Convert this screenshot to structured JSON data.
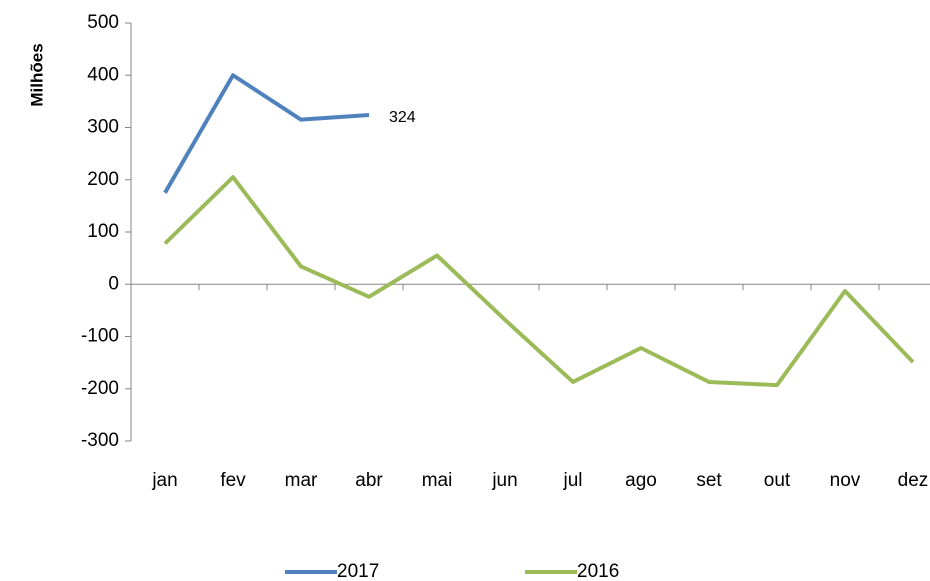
{
  "chart_data": {
    "type": "line",
    "y_label": "Milhões",
    "categories": [
      "jan",
      "fev",
      "mar",
      "abr",
      "mai",
      "jun",
      "jul",
      "ago",
      "set",
      "out",
      "nov",
      "dez"
    ],
    "series": [
      {
        "name": "2017",
        "color": "#4f81bd",
        "values": [
          175,
          400,
          315,
          324,
          null,
          null,
          null,
          null,
          null,
          null,
          null,
          null
        ]
      },
      {
        "name": "2016",
        "color": "#9bbb59",
        "values": [
          78,
          205,
          34,
          -24,
          55,
          -68,
          -187,
          -122,
          -187,
          -193,
          -13,
          -149
        ]
      }
    ],
    "ylim": [
      -300,
      500
    ],
    "yticks": [
      -300,
      -200,
      -100,
      0,
      100,
      200,
      300,
      400,
      500
    ],
    "grid": false
  }
}
